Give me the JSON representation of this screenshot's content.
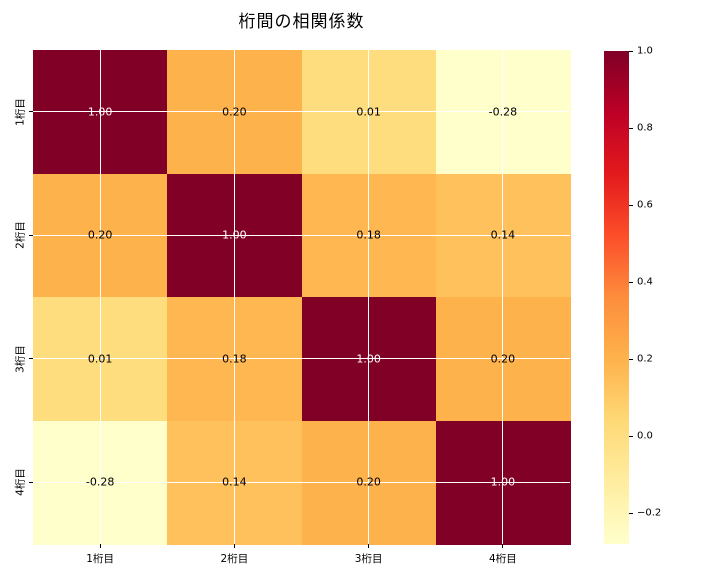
{
  "chart_data": {
    "type": "heatmap",
    "title": "桁間の相関係数",
    "x_tick_labels": [
      "1桁目",
      "2桁目",
      "3桁目",
      "4桁目"
    ],
    "y_tick_labels": [
      "1桁目",
      "2桁目",
      "3桁目",
      "4桁目"
    ],
    "matrix": [
      [
        1.0,
        0.2,
        0.01,
        -0.28
      ],
      [
        0.2,
        1.0,
        0.18,
        0.14
      ],
      [
        0.01,
        0.18,
        1.0,
        0.2
      ],
      [
        -0.28,
        0.14,
        0.2,
        1.0
      ]
    ],
    "cell_labels": [
      [
        "1.00",
        "0.20",
        "0.01",
        "-0.28"
      ],
      [
        "0.20",
        "1.00",
        "0.18",
        "0.14"
      ],
      [
        "0.01",
        "0.18",
        "1.00",
        "0.20"
      ],
      [
        "-0.28",
        "0.14",
        "0.20",
        "1.00"
      ]
    ],
    "cell_colors": [
      [
        "#800026",
        "#feb24c",
        "#fedd7e",
        "#ffffcc"
      ],
      [
        "#feb24c",
        "#800026",
        "#feb751",
        "#fec15c"
      ],
      [
        "#fedd7e",
        "#feb751",
        "#800026",
        "#feb24c"
      ],
      [
        "#ffffcc",
        "#fec15c",
        "#feb24c",
        "#800026"
      ]
    ],
    "annotation_colors": {
      "on_dark": "#ffffff",
      "on_light": "#000000"
    },
    "grid": true,
    "grid_color": "#ffffff",
    "colormap": "YlOrRd",
    "vmin": -0.28,
    "vmax": 1.0,
    "colorbar": {
      "position": "right",
      "tick_values": [
        1.0,
        0.8,
        0.6,
        0.4,
        0.2,
        0.0,
        -0.2
      ],
      "tick_labels": [
        "1.0",
        "0.8",
        "0.6",
        "0.4",
        "0.2",
        "0.0",
        "−0.2"
      ],
      "gradient_top_to_bottom": [
        "#800026",
        "#bd0026",
        "#e31a1c",
        "#fc4e2a",
        "#fd8d3c",
        "#feb24c",
        "#fed976",
        "#ffeda0",
        "#ffffcc"
      ]
    }
  }
}
